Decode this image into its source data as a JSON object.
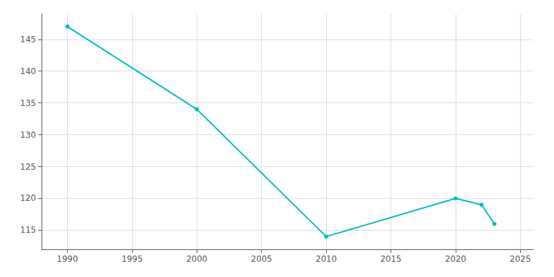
{
  "chart_data": {
    "type": "line",
    "x": [
      1990,
      2000,
      2010,
      2020,
      2022,
      2023
    ],
    "values": [
      147,
      134,
      114,
      120,
      119,
      116
    ],
    "color": "#00BFBF",
    "marker": "circle",
    "xlim": [
      1988,
      2026
    ],
    "ylim": [
      112,
      149
    ],
    "xticks": [
      1990,
      1995,
      2000,
      2005,
      2010,
      2015,
      2020,
      2025
    ],
    "yticks": [
      115,
      120,
      125,
      130,
      135,
      140,
      145
    ],
    "grid": true
  }
}
